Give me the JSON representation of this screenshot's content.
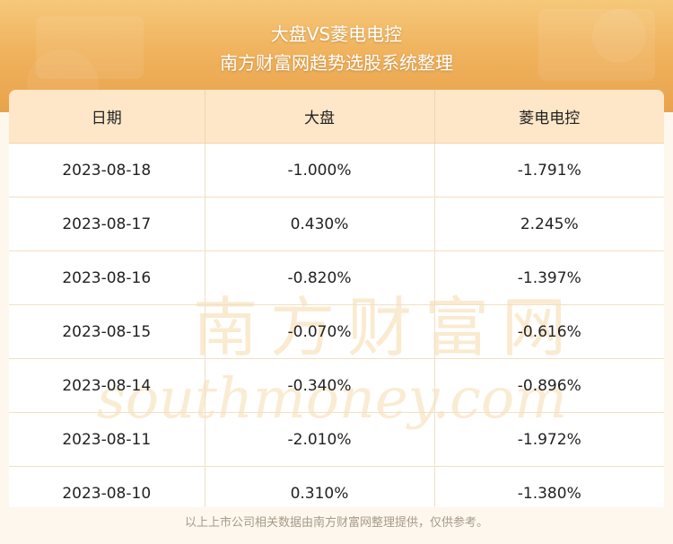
{
  "header": {
    "title": "大盘VS菱电电控",
    "subtitle": "南方财富网趋势选股系统整理"
  },
  "table": {
    "columns": [
      "日期",
      "大盘",
      "菱电电控"
    ],
    "rows": [
      [
        "2023-08-18",
        "-1.000%",
        "-1.791%"
      ],
      [
        "2023-08-17",
        "0.430%",
        "2.245%"
      ],
      [
        "2023-08-16",
        "-0.820%",
        "-1.397%"
      ],
      [
        "2023-08-15",
        "-0.070%",
        "-0.616%"
      ],
      [
        "2023-08-14",
        "-0.340%",
        "-0.896%"
      ],
      [
        "2023-08-11",
        "-2.010%",
        "-1.972%"
      ],
      [
        "2023-08-10",
        "0.310%",
        "-1.380%"
      ]
    ]
  },
  "watermark": {
    "cn": "南方财富网",
    "en": "southmoney.com"
  },
  "footer": {
    "note": "以上上市公司相关数据由南方财富网整理提供，仅供参考。"
  },
  "colors": {
    "banner": "#f0b35e",
    "header_row": "#fde7c8",
    "watermark": "#f7d9a8"
  }
}
